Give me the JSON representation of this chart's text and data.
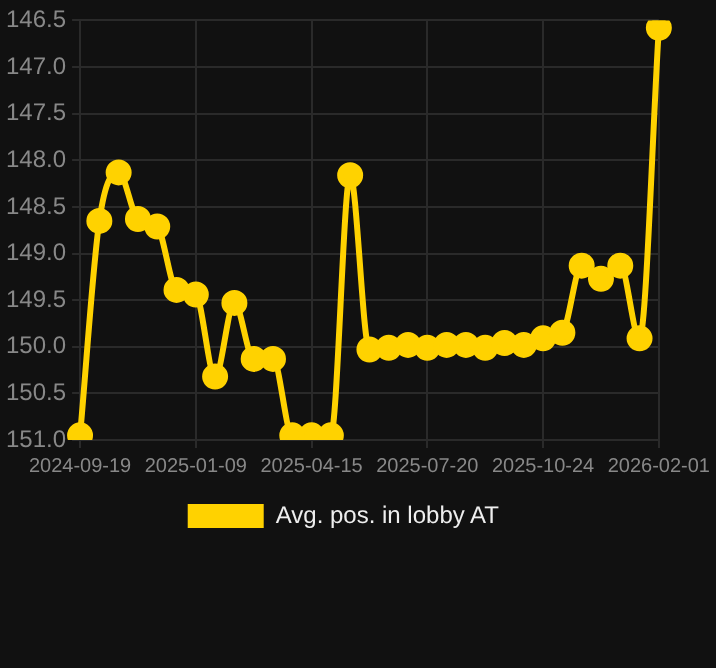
{
  "chart_data": {
    "type": "line",
    "categories": [
      "2024-09-19",
      null,
      null,
      null,
      null,
      null,
      "2025-01-09",
      null,
      null,
      null,
      null,
      null,
      "2025-04-15",
      null,
      null,
      null,
      null,
      null,
      "2025-07-20",
      null,
      null,
      null,
      null,
      null,
      "2025-10-24",
      null,
      null,
      null,
      null,
      null,
      "2026-02-01"
    ],
    "series": [
      {
        "name": "Avg. pos. in lobby AT",
        "color": "#ffd200",
        "values": [
          150.95,
          148.65,
          148.13,
          148.63,
          148.71,
          149.39,
          149.44,
          150.32,
          149.53,
          150.13,
          150.13,
          150.95,
          150.95,
          150.95,
          148.16,
          150.03,
          150.01,
          149.98,
          150.01,
          149.98,
          149.98,
          150.01,
          149.96,
          149.98,
          149.91,
          149.85,
          149.13,
          149.27,
          149.13,
          149.91,
          146.58
        ]
      }
    ],
    "ylim": [
      151.0,
      146.5
    ],
    "yticks": [
      146.5,
      {
        "value": 147,
        "label": "147.0"
      },
      147.5,
      {
        "value": 148,
        "label": "148.0"
      },
      148.5,
      {
        "value": 149,
        "label": "149.0"
      },
      149.5,
      {
        "value": 150,
        "label": "150.0"
      },
      150.5,
      {
        "value": 151,
        "label": "151.0"
      }
    ],
    "grid": true,
    "legend": "bottom",
    "marker": "circle",
    "line_style": "solid"
  }
}
